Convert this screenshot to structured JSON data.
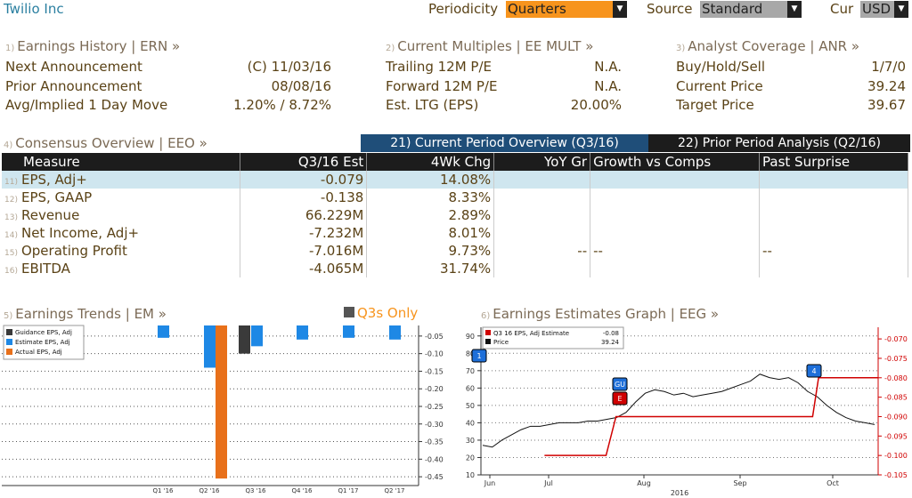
{
  "header": {
    "title": "Twilio Inc",
    "periodicity_label": "Periodicity",
    "periodicity_value": "Quarters",
    "source_label": "Source",
    "source_value": "Standard",
    "cur_label": "Cur",
    "cur_value": "USD"
  },
  "earnings_history": {
    "num": "1)",
    "title": "Earnings History | ERN »",
    "rows": [
      {
        "label": "Next Announcement",
        "value": "(C)  11/03/16"
      },
      {
        "label": "Prior Announcement",
        "value": "08/08/16"
      },
      {
        "label": "Avg/Implied 1 Day Move",
        "value": "1.20% / 8.72%"
      }
    ]
  },
  "current_multiples": {
    "num": "2)",
    "title": "Current Multiples | EE MULT »",
    "rows": [
      {
        "label": "Trailing 12M P/E",
        "value": "N.A."
      },
      {
        "label": "Forward 12M P/E",
        "value": "N.A."
      },
      {
        "label": "Est. LTG (EPS)",
        "value": "20.00%"
      }
    ]
  },
  "analyst_coverage": {
    "num": "3)",
    "title": "Analyst Coverage | ANR »",
    "rows": [
      {
        "label": "Buy/Hold/Sell",
        "value": "1/7/0"
      },
      {
        "label": "Current Price",
        "value": "39.24"
      },
      {
        "label": "Target Price",
        "value": "39.67"
      }
    ]
  },
  "consensus": {
    "num": "4)",
    "title": "Consensus Overview | EEO »",
    "tab_current": "21) Current Period Overview (Q3/16)",
    "tab_prior": "22) Prior Period Analysis (Q2/16)",
    "headers": [
      "Measure",
      "Q3/16 Est",
      "4Wk Chg",
      "YoY Gr",
      "Growth vs Comps",
      "Past Surprise"
    ],
    "rows": [
      {
        "num": "11)",
        "measure": "EPS, Adj+",
        "est": "-0.079",
        "chg": "14.08%",
        "yoy": "",
        "comps": "",
        "surprise": ""
      },
      {
        "num": "12)",
        "measure": "EPS, GAAP",
        "est": "-0.138",
        "chg": "8.33%",
        "yoy": "",
        "comps": "",
        "surprise": ""
      },
      {
        "num": "13)",
        "measure": "Revenue",
        "est": "66.229M",
        "chg": "2.89%",
        "yoy": "",
        "comps": "",
        "surprise": ""
      },
      {
        "num": "14)",
        "measure": "Net Income, Adj+",
        "est": "-7.232M",
        "chg": "8.01%",
        "yoy": "",
        "comps": "",
        "surprise": ""
      },
      {
        "num": "15)",
        "measure": "Operating Profit",
        "est": "-7.016M",
        "chg": "9.73%",
        "yoy": "--",
        "comps": "--",
        "surprise": "--"
      },
      {
        "num": "16)",
        "measure": "EBITDA",
        "est": "-4.065M",
        "chg": "31.74%",
        "yoy": "",
        "comps": "",
        "surprise": ""
      }
    ]
  },
  "earnings_trends": {
    "num": "5)",
    "title": "Earnings Trends | EM »",
    "toggle_label": "Q3s Only",
    "colors": {
      "guidance": "#3a3a3a",
      "estimate": "#1e88e5",
      "actual": "#e8701a"
    },
    "chart_data": {
      "type": "bar",
      "categories": [
        "Q1 '16",
        "Q2 '16",
        "Q3 '16",
        "Q4 '16",
        "Q1 '17",
        "Q2 '17"
      ],
      "series": [
        {
          "name": "Guidance EPS, Adj",
          "values": [
            null,
            null,
            -0.1,
            null,
            null,
            null
          ]
        },
        {
          "name": "Estimate EPS, Adj",
          "values": [
            -0.055,
            -0.14,
            -0.079,
            -0.06,
            -0.055,
            -0.06
          ]
        },
        {
          "name": "Actual EPS, Adj",
          "values": [
            null,
            -0.455,
            null,
            null,
            null,
            null
          ]
        }
      ],
      "ylim": [
        -0.475,
        -0.02
      ],
      "yticks": [
        "-0.05",
        "-0.10",
        "-0.15",
        "-0.20",
        "-0.25",
        "-0.30",
        "-0.35",
        "-0.40",
        "-0.45"
      ],
      "legend": "top-left"
    }
  },
  "estimates_graph": {
    "num": "6)",
    "title": "Earnings Estimates Graph | EEG »",
    "legend": [
      {
        "label": "Q3 16 EPS, Adj Estimate",
        "value": "-0.08",
        "color": "#d00000"
      },
      {
        "label": "Price",
        "value": "39.24",
        "color": "#111111"
      }
    ],
    "markers": [
      {
        "text": "1",
        "color": "#1e6fd9"
      },
      {
        "text": "GU",
        "color": "#1e6fd9"
      },
      {
        "text": "E",
        "color": "#d00000"
      },
      {
        "text": "4",
        "color": "#1e6fd9"
      }
    ],
    "chart_data": {
      "type": "line",
      "x_labels": [
        "Jun",
        "Jul",
        "Aug",
        "Sep",
        "Oct"
      ],
      "x_sublabel": "2016",
      "left_ylim": [
        10,
        95
      ],
      "left_yticks": [
        "90",
        "80",
        "70",
        "60",
        "50",
        "40",
        "30",
        "20",
        "10"
      ],
      "right_ylim": [
        -0.105,
        -0.067
      ],
      "right_yticks": [
        "-0.070",
        "-0.075",
        "-0.080",
        "-0.085",
        "-0.090",
        "-0.095",
        "-0.100",
        "-0.105"
      ],
      "price": [
        27,
        26,
        30,
        33,
        36,
        38,
        38,
        39,
        40,
        40,
        40,
        41,
        41,
        42,
        43,
        46,
        52,
        57,
        59,
        58,
        56,
        57,
        55,
        56,
        57,
        58,
        60,
        62,
        64,
        68,
        66,
        65,
        66,
        63,
        58,
        55,
        50,
        46,
        43,
        41,
        40,
        39
      ],
      "estimate": [
        {
          "x": 0.16,
          "y": -0.1
        },
        {
          "x": 0.315,
          "y": -0.1
        },
        {
          "x": 0.34,
          "y": -0.09
        },
        {
          "x": 0.835,
          "y": -0.09
        },
        {
          "x": 0.85,
          "y": -0.08
        },
        {
          "x": 1.0,
          "y": -0.08
        }
      ]
    }
  }
}
